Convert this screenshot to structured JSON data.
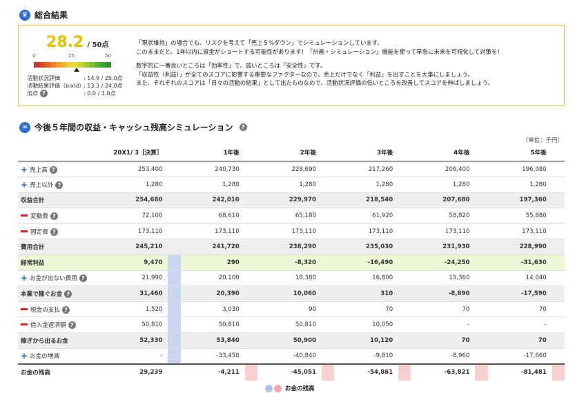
{
  "summary": {
    "title": "総合結果",
    "score": "28.2",
    "score_max": "/ 50点",
    "scale": [
      "0",
      "25",
      "50"
    ],
    "metrics": [
      {
        "label": "活動状況評価",
        "value": ": 14.9 / 25.0点"
      },
      {
        "label": "活動結果評価（bixid）",
        "value": ": 13.3 / 24.0点"
      },
      {
        "label": "加点",
        "value": ": 0.0 / 1.0点"
      }
    ],
    "comment": [
      "「現状維持」の場合でも、リスクを考えて「売上５%ダウン」でシミュレーションしています。",
      "このままだと、1年以内に資金がショートする可能性があります！「計画・シミュレーション」機能を使って早急に未来を可視化して対策を！",
      "",
      "数字的に一番良いところは「効率性」で、弱いところは「安全性」です。",
      "「収益性（利益）」が全てのスコアに影響する重要なファクターなので、売上だけでなく「利益」を出すことを大事にしましょう。",
      "また、それぞれのスコアは「日々の活動の結果」として出たものなので、活動状況評価の低いところを改善してスコアを伸ばしましょう。"
    ]
  },
  "sim": {
    "title": "今後５年間の収益・キャッシュ残高シミュレーション",
    "unit": "（単位：千円）",
    "headers": [
      "20X1/ 3［決算］",
      "1年後",
      "2年後",
      "3年後",
      "4年後",
      "5年後"
    ],
    "rows": [
      {
        "label": "売上高",
        "sign": "plus",
        "help": true,
        "type": "normal",
        "values": [
          "253,400",
          "240,730",
          "228,690",
          "217,260",
          "206,400",
          "196,080"
        ]
      },
      {
        "label": "売上以外",
        "sign": "plus",
        "help": true,
        "type": "normal",
        "values": [
          "1,280",
          "1,280",
          "1,280",
          "1,280",
          "1,280",
          "1,280"
        ]
      },
      {
        "label": "収益合計",
        "sign": "",
        "help": false,
        "type": "total",
        "values": [
          "254,680",
          "242,010",
          "229,970",
          "218,540",
          "207,680",
          "197,360"
        ]
      },
      {
        "label": "変動費",
        "sign": "minus",
        "help": true,
        "type": "normal",
        "values": [
          "72,100",
          "68,610",
          "65,180",
          "61,920",
          "58,820",
          "55,880"
        ]
      },
      {
        "label": "固定費",
        "sign": "minus",
        "help": true,
        "type": "normal",
        "values": [
          "173,110",
          "173,110",
          "173,110",
          "173,110",
          "173,110",
          "173,110"
        ]
      },
      {
        "label": "費用合計",
        "sign": "",
        "help": false,
        "type": "total",
        "values": [
          "245,210",
          "241,720",
          "238,290",
          "235,030",
          "231,930",
          "228,990"
        ]
      },
      {
        "label": "経常利益",
        "sign": "",
        "help": false,
        "type": "keijo",
        "values": [
          "9,470",
          "290",
          "-8,320",
          "-16,490",
          "-24,250",
          "-31,630"
        ]
      },
      {
        "label": "お金が出ない費用",
        "sign": "plus",
        "help": true,
        "type": "normal",
        "values": [
          "21,990",
          "20,100",
          "18,380",
          "16,800",
          "15,360",
          "14,040"
        ]
      },
      {
        "label": "本業で稼ぐお金",
        "sign": "",
        "help": true,
        "type": "total",
        "values": [
          "31,460",
          "20,390",
          "10,060",
          "310",
          "-8,890",
          "-17,590"
        ]
      },
      {
        "label": "税金の支払",
        "sign": "minus",
        "help": true,
        "type": "normal",
        "values": [
          "1,520",
          "3,030",
          "90",
          "70",
          "70",
          "70"
        ]
      },
      {
        "label": "借入金返済額",
        "sign": "minus",
        "help": true,
        "type": "normal",
        "values": [
          "50,810",
          "50,810",
          "50,810",
          "10,050",
          "-",
          "-"
        ]
      },
      {
        "label": "稼ぎから出るお金",
        "sign": "",
        "help": false,
        "type": "total",
        "values": [
          "52,330",
          "53,840",
          "50,900",
          "10,120",
          "70",
          "70"
        ]
      },
      {
        "label": "お金の増減",
        "sign": "plus",
        "help": false,
        "type": "normal",
        "values": [
          "-",
          "-33,450",
          "-40,840",
          "-9,810",
          "-8,960",
          "-17,660"
        ]
      },
      {
        "label": "お金の残高",
        "sign": "",
        "help": false,
        "type": "final",
        "values": [
          "29,239",
          "-4,211",
          "-45,051",
          "-54,861",
          "-63,821",
          "-81,481"
        ]
      }
    ],
    "legend": "お金の残高"
  },
  "colors": {
    "blue_bar": "#c6d7ef",
    "red_bar": "#f7cfcf",
    "negative": "#e02020",
    "accent": "#f0c040"
  }
}
